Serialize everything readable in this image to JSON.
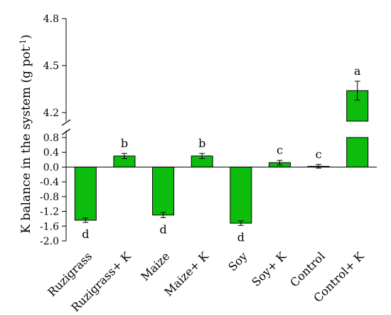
{
  "chart_data": {
    "type": "bar",
    "ylabel": "K balance in the system (g pot",
    "ylabel_superscript": "-1",
    "ylabel_close": ")",
    "categories": [
      "Ruzigrass",
      "Ruzigrass+ K",
      "Maize",
      "Maize+ K",
      "Soy",
      "Soy+ K",
      "Control",
      "Control+ K"
    ],
    "values": [
      -1.44,
      0.3,
      -1.3,
      0.3,
      -1.52,
      0.12,
      0.02,
      4.34
    ],
    "errors": [
      0.06,
      0.07,
      0.07,
      0.07,
      0.06,
      0.06,
      0.05,
      0.06
    ],
    "letters": [
      "d",
      "b",
      "d",
      "b",
      "d",
      "c",
      "c",
      "a"
    ],
    "bar_color": "#0dbd0d",
    "y_axis": {
      "broken": true,
      "lower_range": [
        -2.0,
        0.8
      ],
      "lower_ticks": [
        "-2.0",
        "-1.6",
        "-1.2",
        "-0.8",
        "-0.4",
        "0.0",
        "0.4",
        "0.8"
      ],
      "upper_range": [
        4.0,
        4.8
      ],
      "upper_ticks": [
        "4.2",
        "4.5",
        "4.8"
      ]
    }
  }
}
